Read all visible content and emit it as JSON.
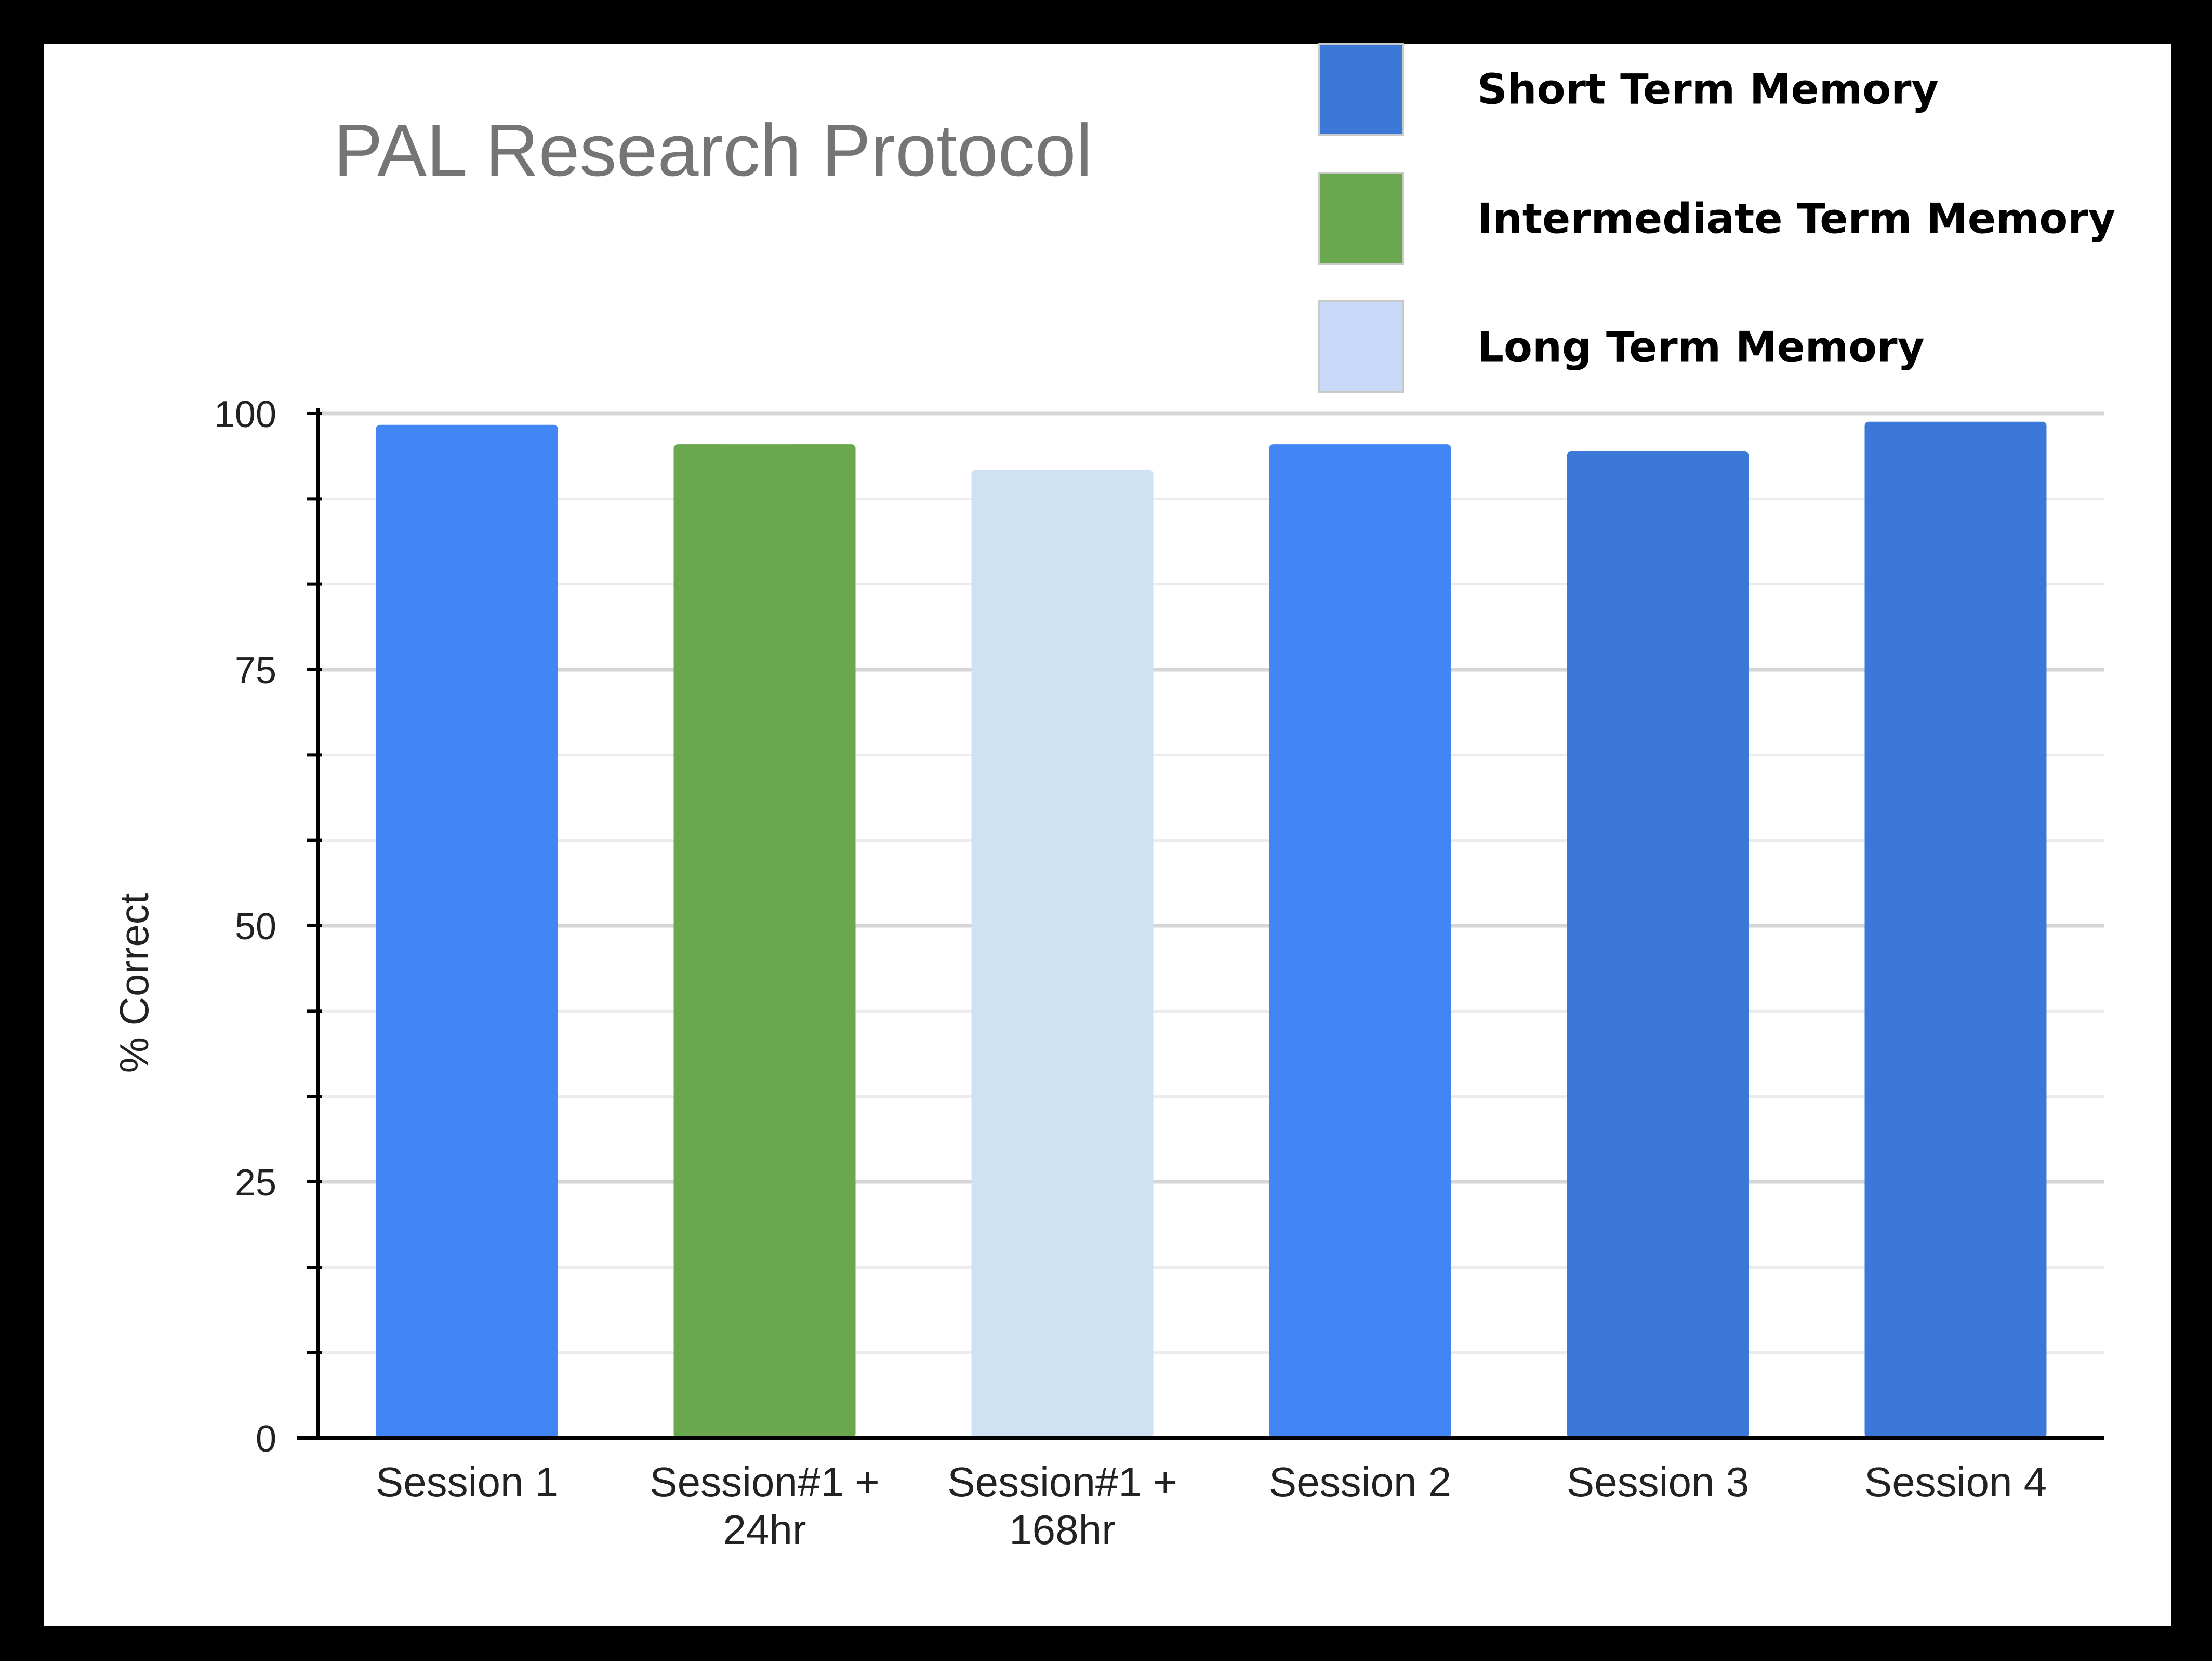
{
  "chart_data": {
    "type": "bar",
    "title": "PAL Research Protocol",
    "xlabel": "",
    "ylabel": "% Correct",
    "ylim": [
      0,
      100
    ],
    "yticks": [
      "0",
      "25",
      "50",
      "75",
      "100"
    ],
    "grid": true,
    "legend_position": "top-right",
    "categories": [
      [
        "Session 1"
      ],
      [
        "Session#1 +",
        "24hr"
      ],
      [
        "Session#1 +",
        "168hr"
      ],
      [
        "Session 2"
      ],
      [
        "Session 3"
      ],
      [
        "Session 4"
      ]
    ],
    "values": [
      98.9,
      97.0,
      94.5,
      97.0,
      96.3,
      99.2
    ],
    "bar_colors": [
      "#4285F4",
      "#6AA84F",
      "#CFE2F3",
      "#4285F4",
      "#3C78D8",
      "#3C78D8"
    ],
    "legend": [
      {
        "label": "Short Term Memory",
        "color": "#3C78D8"
      },
      {
        "label": "Intermediate Term Memory",
        "color": "#6AA84F"
      },
      {
        "label": "Long Term Memory",
        "color": "#C9DAF8"
      }
    ]
  }
}
